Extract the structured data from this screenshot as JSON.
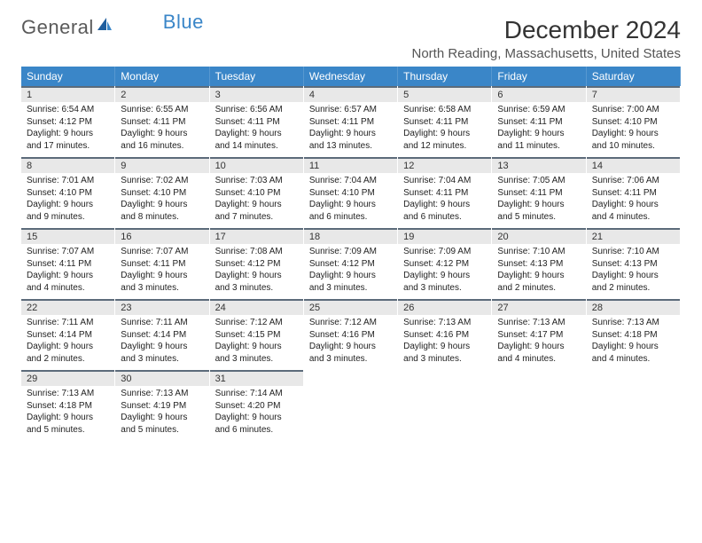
{
  "brand": {
    "general": "General",
    "blue": "Blue"
  },
  "title": {
    "month": "December 2024",
    "location": "North Reading, Massachusetts, United States"
  },
  "colors": {
    "header_bar": "#3a86c8",
    "dow_text": "#ffffff",
    "day_num_bg": "#e8e8e8",
    "day_num_border": "#5c6b7a"
  },
  "dow": [
    "Sunday",
    "Monday",
    "Tuesday",
    "Wednesday",
    "Thursday",
    "Friday",
    "Saturday"
  ],
  "days": [
    {
      "n": "1",
      "sr": "Sunrise: 6:54 AM",
      "ss": "Sunset: 4:12 PM",
      "dl": "Daylight: 9 hours and 17 minutes."
    },
    {
      "n": "2",
      "sr": "Sunrise: 6:55 AM",
      "ss": "Sunset: 4:11 PM",
      "dl": "Daylight: 9 hours and 16 minutes."
    },
    {
      "n": "3",
      "sr": "Sunrise: 6:56 AM",
      "ss": "Sunset: 4:11 PM",
      "dl": "Daylight: 9 hours and 14 minutes."
    },
    {
      "n": "4",
      "sr": "Sunrise: 6:57 AM",
      "ss": "Sunset: 4:11 PM",
      "dl": "Daylight: 9 hours and 13 minutes."
    },
    {
      "n": "5",
      "sr": "Sunrise: 6:58 AM",
      "ss": "Sunset: 4:11 PM",
      "dl": "Daylight: 9 hours and 12 minutes."
    },
    {
      "n": "6",
      "sr": "Sunrise: 6:59 AM",
      "ss": "Sunset: 4:11 PM",
      "dl": "Daylight: 9 hours and 11 minutes."
    },
    {
      "n": "7",
      "sr": "Sunrise: 7:00 AM",
      "ss": "Sunset: 4:10 PM",
      "dl": "Daylight: 9 hours and 10 minutes."
    },
    {
      "n": "8",
      "sr": "Sunrise: 7:01 AM",
      "ss": "Sunset: 4:10 PM",
      "dl": "Daylight: 9 hours and 9 minutes."
    },
    {
      "n": "9",
      "sr": "Sunrise: 7:02 AM",
      "ss": "Sunset: 4:10 PM",
      "dl": "Daylight: 9 hours and 8 minutes."
    },
    {
      "n": "10",
      "sr": "Sunrise: 7:03 AM",
      "ss": "Sunset: 4:10 PM",
      "dl": "Daylight: 9 hours and 7 minutes."
    },
    {
      "n": "11",
      "sr": "Sunrise: 7:04 AM",
      "ss": "Sunset: 4:10 PM",
      "dl": "Daylight: 9 hours and 6 minutes."
    },
    {
      "n": "12",
      "sr": "Sunrise: 7:04 AM",
      "ss": "Sunset: 4:11 PM",
      "dl": "Daylight: 9 hours and 6 minutes."
    },
    {
      "n": "13",
      "sr": "Sunrise: 7:05 AM",
      "ss": "Sunset: 4:11 PM",
      "dl": "Daylight: 9 hours and 5 minutes."
    },
    {
      "n": "14",
      "sr": "Sunrise: 7:06 AM",
      "ss": "Sunset: 4:11 PM",
      "dl": "Daylight: 9 hours and 4 minutes."
    },
    {
      "n": "15",
      "sr": "Sunrise: 7:07 AM",
      "ss": "Sunset: 4:11 PM",
      "dl": "Daylight: 9 hours and 4 minutes."
    },
    {
      "n": "16",
      "sr": "Sunrise: 7:07 AM",
      "ss": "Sunset: 4:11 PM",
      "dl": "Daylight: 9 hours and 3 minutes."
    },
    {
      "n": "17",
      "sr": "Sunrise: 7:08 AM",
      "ss": "Sunset: 4:12 PM",
      "dl": "Daylight: 9 hours and 3 minutes."
    },
    {
      "n": "18",
      "sr": "Sunrise: 7:09 AM",
      "ss": "Sunset: 4:12 PM",
      "dl": "Daylight: 9 hours and 3 minutes."
    },
    {
      "n": "19",
      "sr": "Sunrise: 7:09 AM",
      "ss": "Sunset: 4:12 PM",
      "dl": "Daylight: 9 hours and 3 minutes."
    },
    {
      "n": "20",
      "sr": "Sunrise: 7:10 AM",
      "ss": "Sunset: 4:13 PM",
      "dl": "Daylight: 9 hours and 2 minutes."
    },
    {
      "n": "21",
      "sr": "Sunrise: 7:10 AM",
      "ss": "Sunset: 4:13 PM",
      "dl": "Daylight: 9 hours and 2 minutes."
    },
    {
      "n": "22",
      "sr": "Sunrise: 7:11 AM",
      "ss": "Sunset: 4:14 PM",
      "dl": "Daylight: 9 hours and 2 minutes."
    },
    {
      "n": "23",
      "sr": "Sunrise: 7:11 AM",
      "ss": "Sunset: 4:14 PM",
      "dl": "Daylight: 9 hours and 3 minutes."
    },
    {
      "n": "24",
      "sr": "Sunrise: 7:12 AM",
      "ss": "Sunset: 4:15 PM",
      "dl": "Daylight: 9 hours and 3 minutes."
    },
    {
      "n": "25",
      "sr": "Sunrise: 7:12 AM",
      "ss": "Sunset: 4:16 PM",
      "dl": "Daylight: 9 hours and 3 minutes."
    },
    {
      "n": "26",
      "sr": "Sunrise: 7:13 AM",
      "ss": "Sunset: 4:16 PM",
      "dl": "Daylight: 9 hours and 3 minutes."
    },
    {
      "n": "27",
      "sr": "Sunrise: 7:13 AM",
      "ss": "Sunset: 4:17 PM",
      "dl": "Daylight: 9 hours and 4 minutes."
    },
    {
      "n": "28",
      "sr": "Sunrise: 7:13 AM",
      "ss": "Sunset: 4:18 PM",
      "dl": "Daylight: 9 hours and 4 minutes."
    },
    {
      "n": "29",
      "sr": "Sunrise: 7:13 AM",
      "ss": "Sunset: 4:18 PM",
      "dl": "Daylight: 9 hours and 5 minutes."
    },
    {
      "n": "30",
      "sr": "Sunrise: 7:13 AM",
      "ss": "Sunset: 4:19 PM",
      "dl": "Daylight: 9 hours and 5 minutes."
    },
    {
      "n": "31",
      "sr": "Sunrise: 7:14 AM",
      "ss": "Sunset: 4:20 PM",
      "dl": "Daylight: 9 hours and 6 minutes."
    }
  ]
}
